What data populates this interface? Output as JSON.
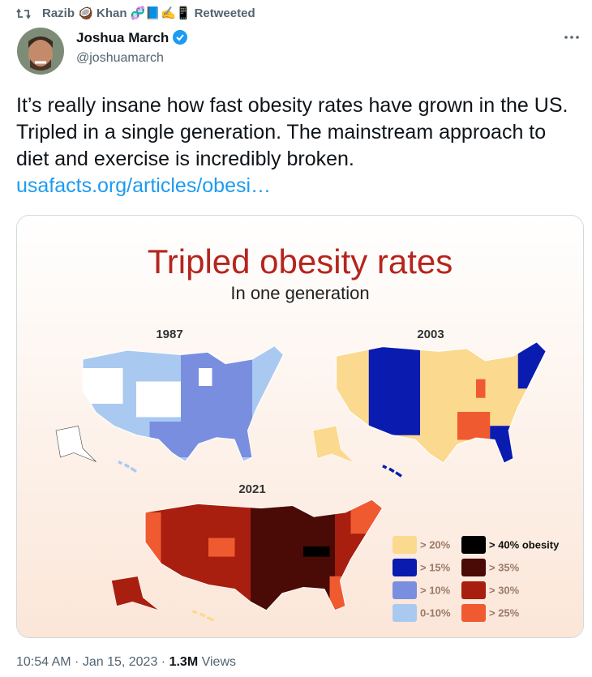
{
  "retweet": {
    "name": "Razib 🥥 Khan 🧬📘✍️📱",
    "label": "Retweeted"
  },
  "author": {
    "name": "Joshua March",
    "handle": "@joshuamarch"
  },
  "tweet": {
    "text": "It’s really insane how fast obesity rates have grown in the US. Tripled in a single generation. The mainstream approach to diet and exercise is incredibly broken.",
    "link": "usafacts.org/articles/obesi…"
  },
  "image": {
    "title": "Tripled obesity rates",
    "subtitle": "In one generation",
    "maps": [
      {
        "year": "1987"
      },
      {
        "year": "2003"
      },
      {
        "year": "2021"
      }
    ],
    "legend": [
      {
        "label": "> 20%",
        "color": "#fbd98f"
      },
      {
        "label": "> 15%",
        "color": "#0a1bb0"
      },
      {
        "label": "> 10%",
        "color": "#7a8ee0"
      },
      {
        "label": "0-10%",
        "color": "#a9c9f0"
      },
      {
        "label": "> 40% obesity",
        "color": "#000000"
      },
      {
        "label": "> 35%",
        "color": "#4a0a05"
      },
      {
        "label": "> 30%",
        "color": "#a81f10"
      },
      {
        "label": "> 25%",
        "color": "#f05a30"
      }
    ]
  },
  "footer": {
    "time": "10:54 AM",
    "date": "Jan 15, 2023",
    "views_count": "1.3M",
    "views_label": "Views"
  }
}
